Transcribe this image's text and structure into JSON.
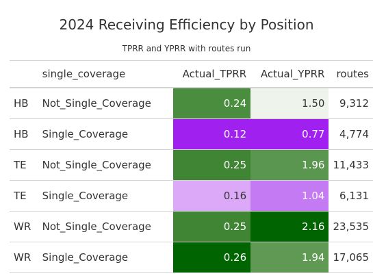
{
  "table": {
    "title": "2024 Receiving Efficiency by Position",
    "subtitle": "TPRR and YPRR with routes run",
    "columns": [
      "",
      "single_coverage",
      "Actual_TPRR",
      "Actual_YPRR",
      "routes"
    ],
    "rows": [
      {
        "pos": "HB",
        "coverage": "Not_Single_Coverage",
        "tprr": "0.24",
        "yprr": "1.50",
        "routes": "9,312",
        "tprr_bg": "#4a8d3f",
        "tprr_fg": "#ffffff",
        "yprr_bg": "#eef4ec",
        "yprr_fg": "#333333"
      },
      {
        "pos": "HB",
        "coverage": "Single_Coverage",
        "tprr": "0.12",
        "yprr": "0.77",
        "routes": "4,774",
        "tprr_bg": "#a020f0",
        "tprr_fg": "#ffffff",
        "yprr_bg": "#a020f0",
        "yprr_fg": "#ffffff"
      },
      {
        "pos": "TE",
        "coverage": "Not_Single_Coverage",
        "tprr": "0.25",
        "yprr": "1.96",
        "routes": "11,433",
        "tprr_bg": "#3f8534",
        "tprr_fg": "#ffffff",
        "yprr_bg": "#5b9650",
        "yprr_fg": "#ffffff"
      },
      {
        "pos": "TE",
        "coverage": "Single_Coverage",
        "tprr": "0.16",
        "yprr": "1.04",
        "routes": "6,131",
        "tprr_bg": "#dca8f8",
        "tprr_fg": "#333333",
        "yprr_bg": "#c47af2",
        "yprr_fg": "#ffffff"
      },
      {
        "pos": "WR",
        "coverage": "Not_Single_Coverage",
        "tprr": "0.25",
        "yprr": "2.16",
        "routes": "23,535",
        "tprr_bg": "#3f8534",
        "tprr_fg": "#ffffff",
        "yprr_bg": "#006400",
        "yprr_fg": "#ffffff"
      },
      {
        "pos": "WR",
        "coverage": "Single_Coverage",
        "tprr": "0.26",
        "yprr": "1.94",
        "routes": "17,065",
        "tprr_bg": "#006400",
        "tprr_fg": "#ffffff",
        "yprr_bg": "#5f9954",
        "yprr_fg": "#ffffff"
      }
    ]
  }
}
